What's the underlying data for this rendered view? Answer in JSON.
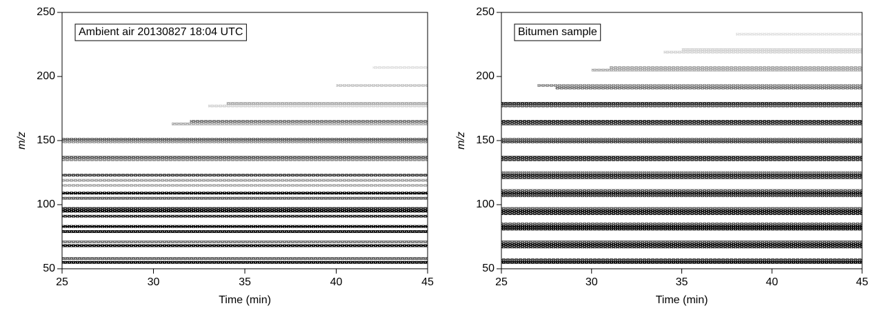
{
  "chart_data": [
    {
      "type": "raster",
      "annotation": "Ambient air 20130827 18:04 UTC",
      "xlabel": "Time (min)",
      "ylabel": "m/z",
      "xlim": [
        25,
        45
      ],
      "xticks": [
        25,
        30,
        35,
        40,
        45
      ],
      "ylim": [
        50,
        250
      ],
      "yticks": [
        50,
        100,
        150,
        200,
        250
      ],
      "color": "#000000",
      "mz": [
        55,
        58,
        68,
        71,
        79,
        83,
        91,
        95,
        97,
        105,
        109,
        115,
        119,
        123,
        135,
        137,
        149,
        151,
        163,
        165,
        177,
        179,
        193,
        207
      ],
      "start": [
        25,
        25,
        25,
        25,
        25,
        25,
        25,
        25,
        25,
        25,
        25,
        25,
        25,
        25,
        25,
        25,
        25,
        25,
        31,
        32,
        33,
        34,
        40,
        42
      ],
      "intensity": [
        0.95,
        0.6,
        0.95,
        0.5,
        0.9,
        0.95,
        0.8,
        0.95,
        0.8,
        0.6,
        0.95,
        0.3,
        0.35,
        0.7,
        0.4,
        0.6,
        0.4,
        0.6,
        0.3,
        0.5,
        0.15,
        0.3,
        0.2,
        0.1
      ]
    },
    {
      "type": "raster",
      "annotation": "Bitumen sample",
      "xlabel": "Time (min)",
      "ylabel": "m/z",
      "xlim": [
        25,
        45
      ],
      "xticks": [
        25,
        30,
        35,
        40,
        45
      ],
      "ylim": [
        50,
        250
      ],
      "yticks": [
        50,
        100,
        150,
        200,
        250
      ],
      "color": "#000000",
      "mz": [
        55,
        57,
        67,
        69,
        71,
        81,
        83,
        85,
        93,
        95,
        97,
        107,
        109,
        111,
        121,
        123,
        125,
        135,
        137,
        149,
        151,
        163,
        165,
        177,
        179,
        191,
        193,
        205,
        207,
        219,
        221,
        233
      ],
      "start": [
        25,
        25,
        25,
        25,
        25,
        25,
        25,
        25,
        25,
        25,
        25,
        25,
        25,
        25,
        25,
        25,
        25,
        25,
        25,
        25,
        25,
        25,
        25,
        25,
        25,
        28,
        27,
        30,
        31,
        34,
        35,
        38
      ],
      "intensity": [
        0.95,
        0.7,
        0.8,
        0.9,
        0.6,
        0.9,
        0.95,
        0.6,
        0.8,
        0.9,
        0.6,
        0.7,
        0.9,
        0.6,
        0.7,
        0.85,
        0.5,
        0.7,
        0.8,
        0.7,
        0.6,
        0.7,
        0.8,
        0.6,
        0.8,
        0.5,
        0.4,
        0.3,
        0.3,
        0.15,
        0.15,
        0.1
      ]
    }
  ]
}
